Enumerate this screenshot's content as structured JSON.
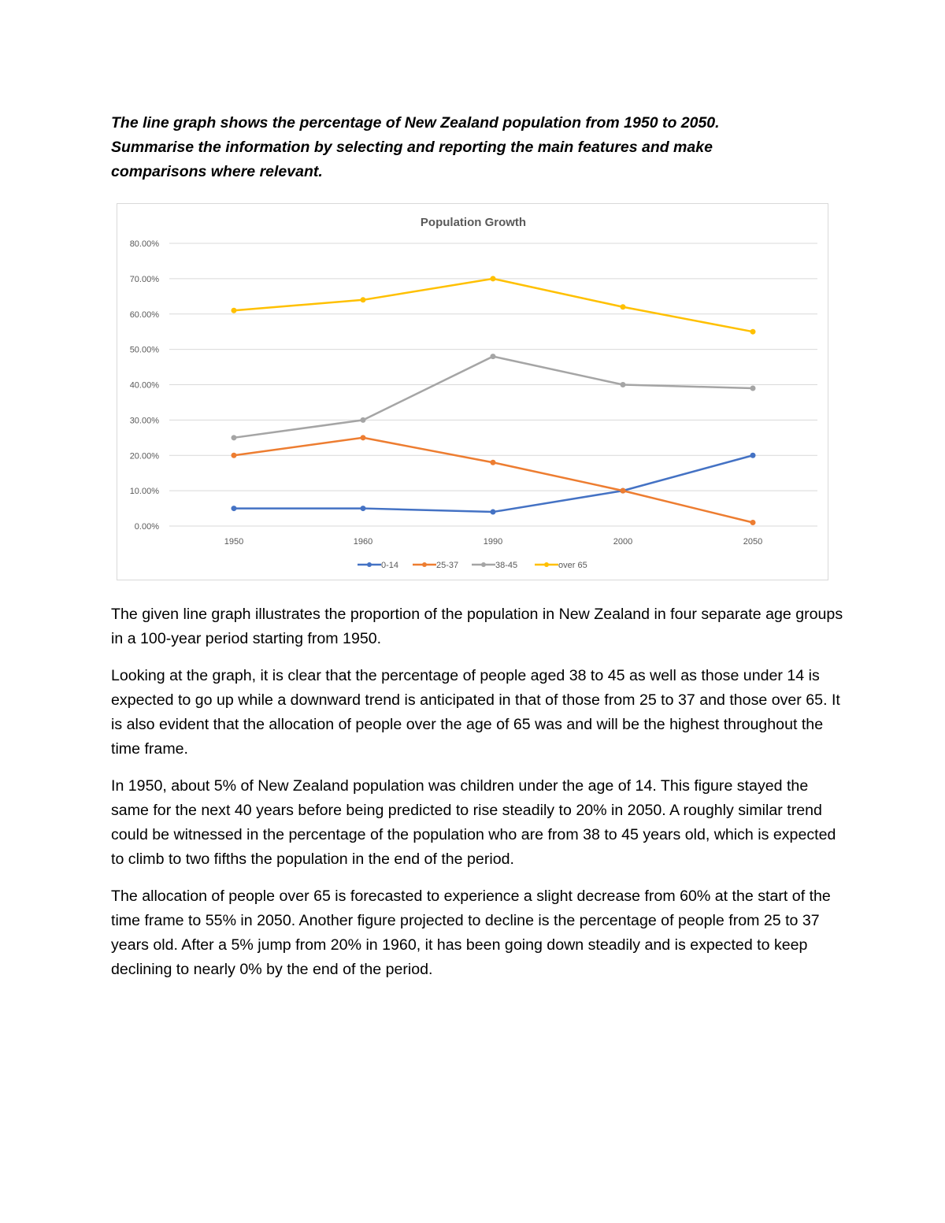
{
  "prompt": {
    "lines": [
      "The line graph shows the percentage of New Zealand population from 1950 to 2050.",
      "Summarise the information by selecting and reporting the main features and make",
      "comparisons where relevant."
    ]
  },
  "chart_data": {
    "type": "line",
    "title": "Population Growth",
    "categories": [
      "1950",
      "1960",
      "1990",
      "2000",
      "2050"
    ],
    "y_ticks": [
      "0.00%",
      "10.00%",
      "20.00%",
      "30.00%",
      "40.00%",
      "50.00%",
      "60.00%",
      "70.00%",
      "80.00%"
    ],
    "ylim": [
      0,
      80
    ],
    "grid": true,
    "legend_position": "bottom",
    "series": [
      {
        "name": "0-14",
        "color": "#4472c4",
        "values": [
          5,
          5,
          4,
          10,
          20
        ]
      },
      {
        "name": "25-37",
        "color": "#ed7d31",
        "values": [
          20,
          25,
          18,
          10,
          1
        ]
      },
      {
        "name": "38-45",
        "color": "#a5a5a5",
        "values": [
          25,
          30,
          48,
          40,
          39
        ]
      },
      {
        "name": "over 65",
        "color": "#ffc000",
        "values": [
          61,
          64,
          70,
          62,
          55
        ]
      }
    ]
  },
  "paragraphs": [
    "The given line graph illustrates the proportion of the population in New Zealand in four separate age groups in a 100-year period starting from 1950.",
    "Looking at the graph, it is clear that the percentage of people aged 38 to 45 as well as those under 14 is expected to go up while a downward trend is anticipated in that of those from 25 to 37 and those over 65. It is also evident that the allocation of people over the age of 65 was and will be the highest throughout the time frame.",
    "In 1950, about 5% of New Zealand population was children under the age of 14. This figure stayed the same for the next 40 years before being predicted to rise steadily to 20% in 2050. A roughly similar trend could be witnessed in the percentage of the population who are from 38 to 45 years old, which is expected to climb to two fifths the population in the end of the period.",
    "The allocation of people over 65 is forecasted to experience a slight decrease from 60% at the start of the time frame to 55% in 2050. Another figure projected to decline is the percentage of people from 25 to 37 years old. After a 5% jump from 20% in 1960, it has been going down steadily and is expected to keep declining to nearly 0% by the end of the period."
  ]
}
